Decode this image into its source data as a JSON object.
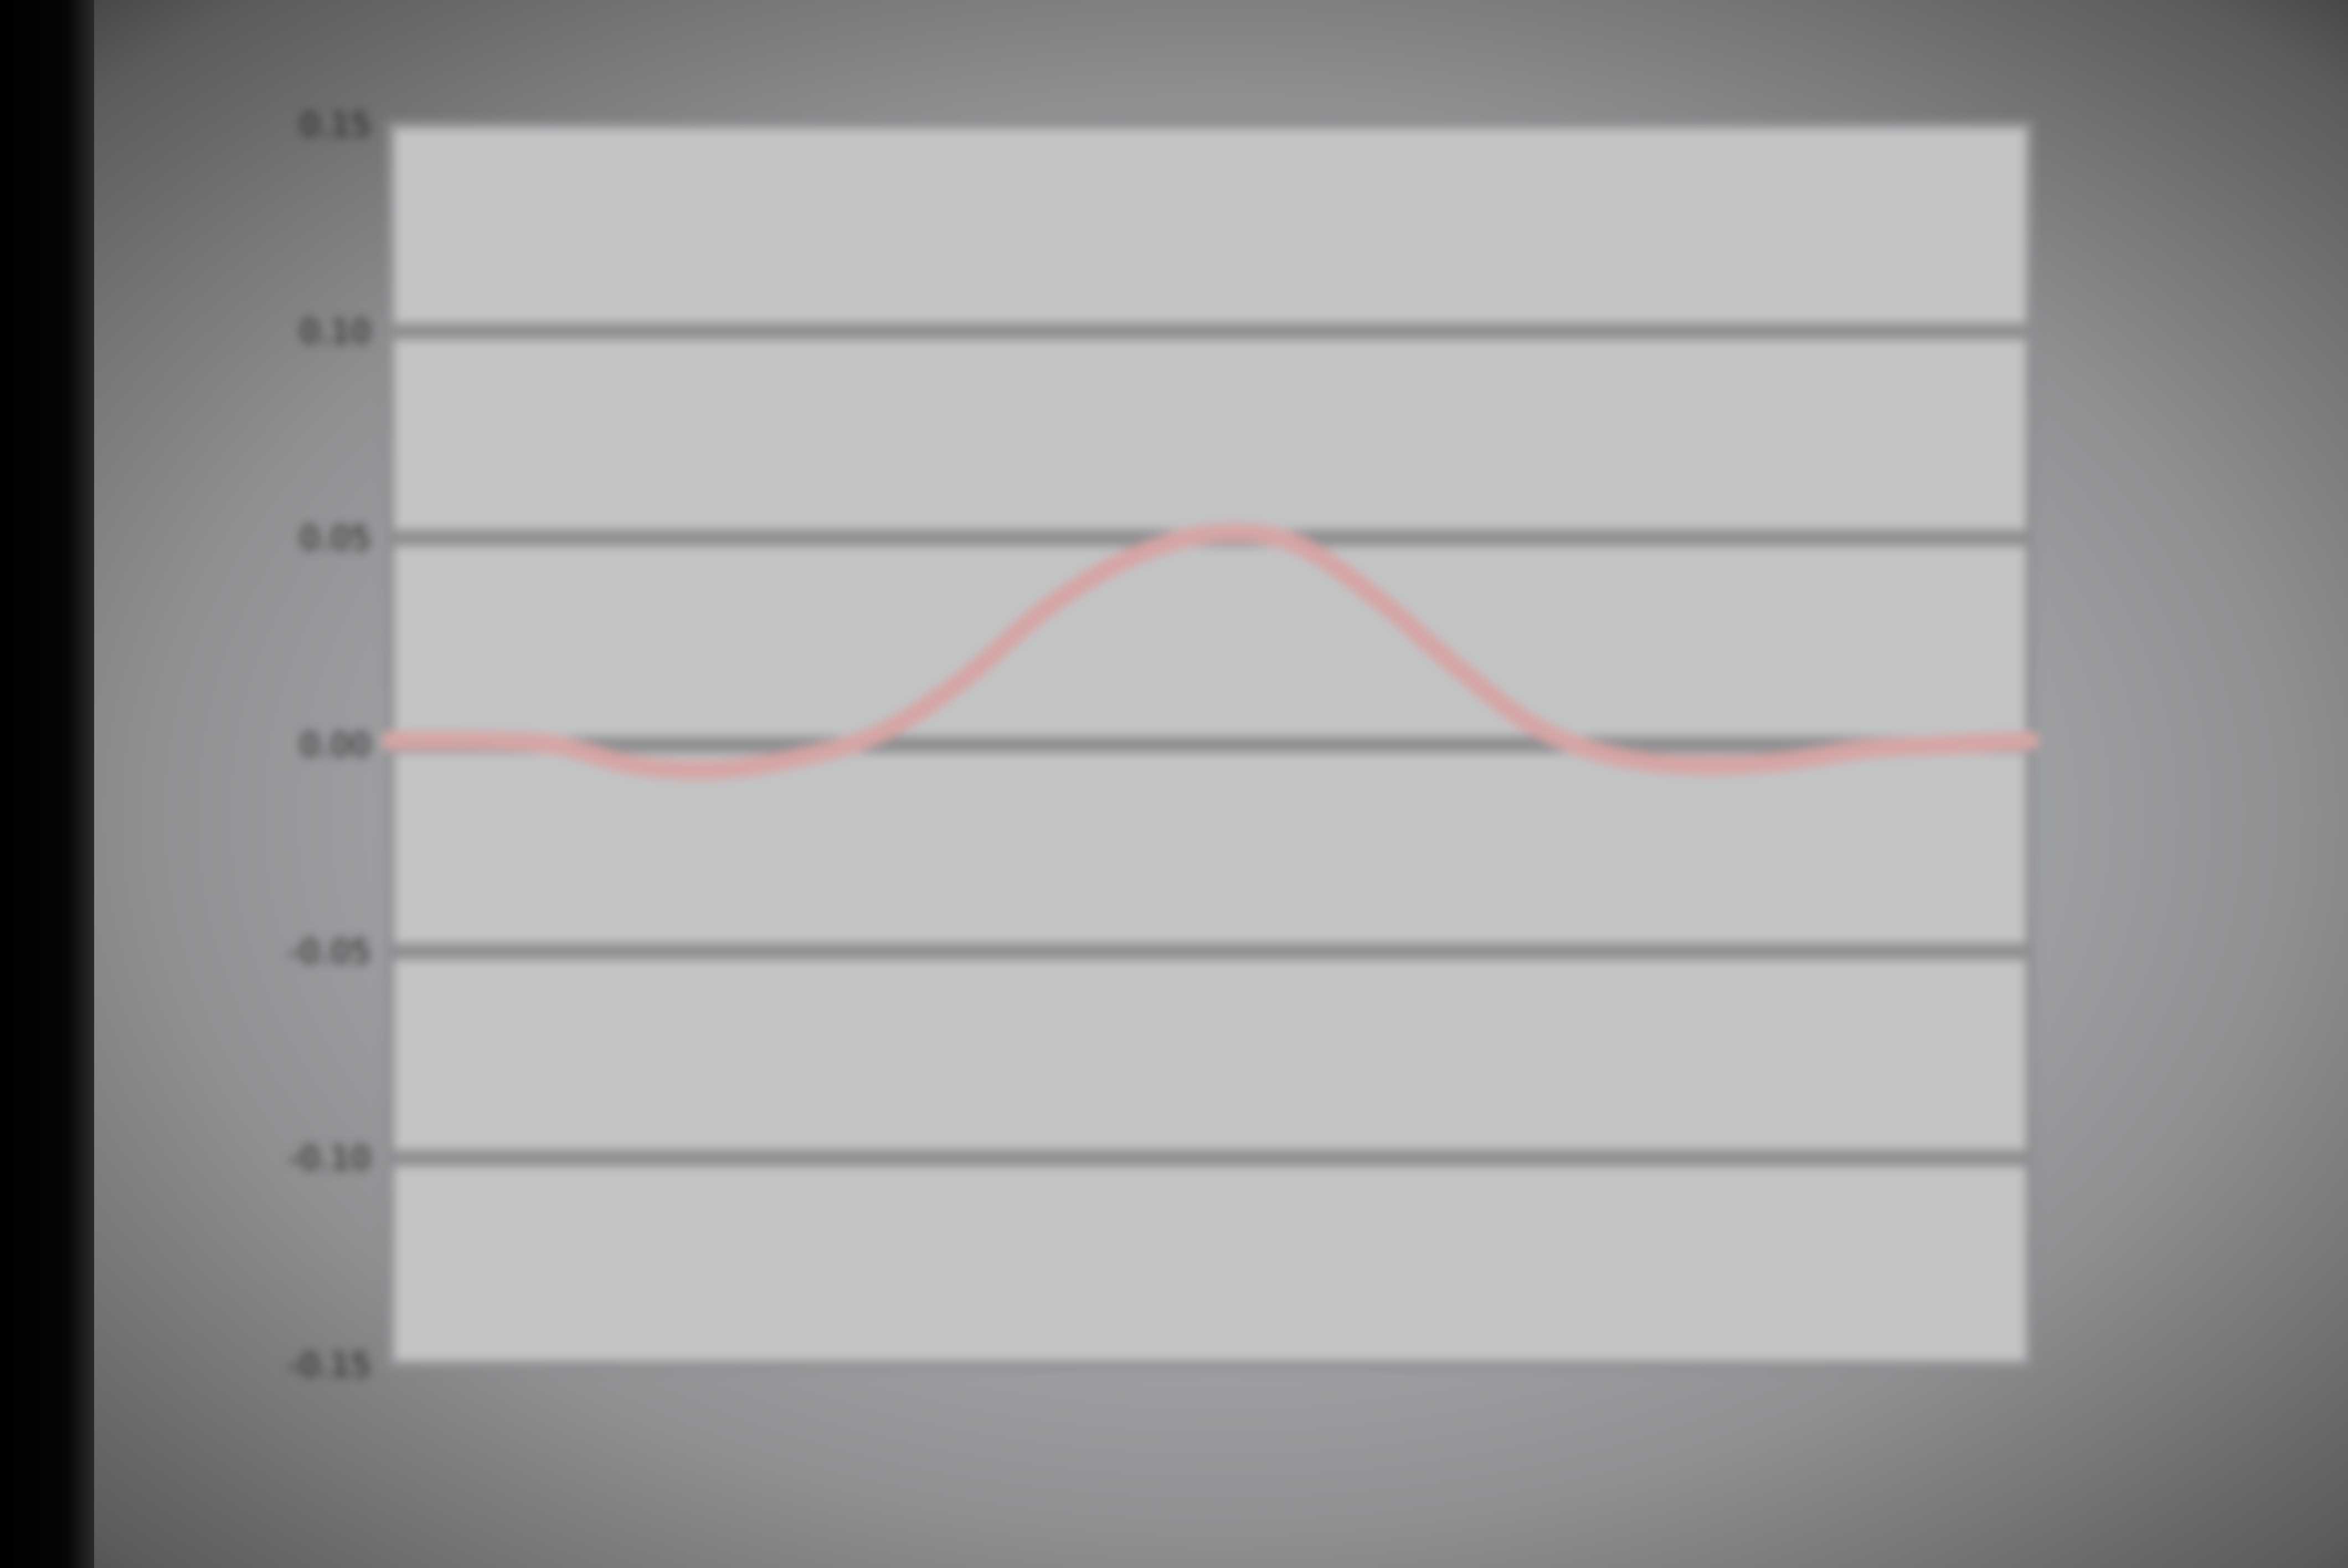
{
  "chart_data": {
    "type": "line",
    "title": "",
    "xlabel": "",
    "ylabel": "",
    "ylim": [
      -0.15,
      0.15
    ],
    "yticks": [
      0.15,
      0.1,
      0.05,
      0.0,
      -0.05,
      -0.1,
      -0.15
    ],
    "ytick_labels": [
      "0.15",
      "0.10",
      "0.05",
      "0.00",
      "-0.05",
      "-0.10",
      "-0.15"
    ],
    "grid": "horizontal",
    "legend": "none",
    "xlim": [
      0,
      1
    ],
    "series": [
      {
        "color": "#d7a5a5",
        "x": [
          0.0,
          0.05,
          0.1,
          0.15,
          0.2,
          0.25,
          0.3,
          0.35,
          0.4,
          0.45,
          0.5,
          0.55,
          0.6,
          0.65,
          0.7,
          0.75,
          0.8,
          0.85,
          0.9,
          0.95,
          1.0
        ],
        "values": [
          0.001,
          0.001,
          0.0,
          -0.005,
          -0.006,
          -0.003,
          0.003,
          0.016,
          0.033,
          0.045,
          0.051,
          0.049,
          0.036,
          0.019,
          0.004,
          -0.003,
          -0.005,
          -0.004,
          -0.001,
          0.0,
          0.001
        ]
      }
    ]
  }
}
